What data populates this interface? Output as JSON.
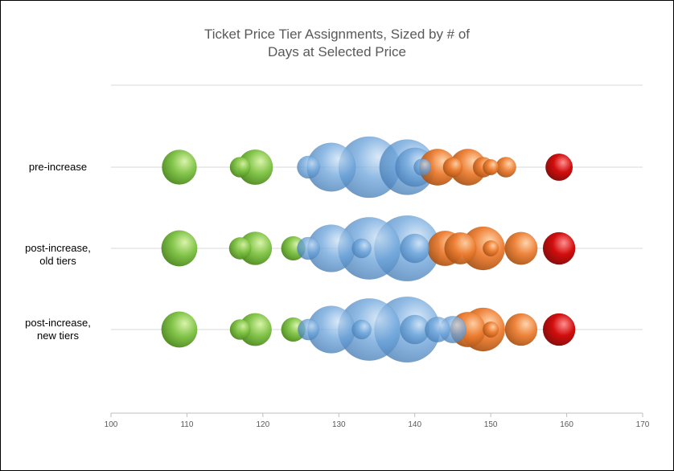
{
  "chart_data": {
    "type": "bubble",
    "title_lines": [
      "Ticket Price Tier Assignments, Sized by # of",
      "Days at Selected Price"
    ],
    "xlim": [
      100,
      170
    ],
    "xticks": [
      100,
      110,
      120,
      130,
      140,
      150,
      160,
      170
    ],
    "categories": [
      "pre-increase",
      "post-increase, old tiers",
      "post-increase, new tiers"
    ],
    "category_label_lines": [
      [
        "pre-increase"
      ],
      [
        "post-increase,",
        "old tiers"
      ],
      [
        "post-increase,",
        "new tiers"
      ]
    ],
    "tier_colors": {
      "green": "#7dc242",
      "blue": "#5b9bd5",
      "orange": "#ed7d31",
      "red": "#c00000"
    },
    "rows": [
      {
        "name": "pre-increase",
        "points": [
          {
            "x": 109,
            "size": 3.3,
            "tier": "green"
          },
          {
            "x": 117,
            "size": 0.6,
            "tier": "green"
          },
          {
            "x": 119,
            "size": 3.4,
            "tier": "green"
          },
          {
            "x": 126,
            "size": 0.9,
            "tier": "blue"
          },
          {
            "x": 129,
            "size": 8.0,
            "tier": "blue"
          },
          {
            "x": 134,
            "size": 14.0,
            "tier": "blue"
          },
          {
            "x": 139,
            "size": 11.0,
            "tier": "blue"
          },
          {
            "x": 140,
            "size": 4.5,
            "tier": "blue"
          },
          {
            "x": 141,
            "size": 0.3,
            "tier": "blue"
          },
          {
            "x": 143,
            "size": 3.8,
            "tier": "orange"
          },
          {
            "x": 145,
            "size": 0.5,
            "tier": "orange"
          },
          {
            "x": 147,
            "size": 3.8,
            "tier": "orange"
          },
          {
            "x": 149,
            "size": 0.6,
            "tier": "orange"
          },
          {
            "x": 150,
            "size": 0.2,
            "tier": "orange"
          },
          {
            "x": 152,
            "size": 0.6,
            "tier": "orange"
          },
          {
            "x": 159,
            "size": 1.6,
            "tier": "red"
          }
        ]
      },
      {
        "name": "post-increase, old tiers",
        "points": [
          {
            "x": 109,
            "size": 3.6,
            "tier": "green"
          },
          {
            "x": 117,
            "size": 0.8,
            "tier": "green"
          },
          {
            "x": 119,
            "size": 2.9,
            "tier": "green"
          },
          {
            "x": 124,
            "size": 1.1,
            "tier": "green"
          },
          {
            "x": 126,
            "size": 0.9,
            "tier": "blue"
          },
          {
            "x": 129,
            "size": 7.5,
            "tier": "blue"
          },
          {
            "x": 133,
            "size": 0.5,
            "tier": "blue"
          },
          {
            "x": 134,
            "size": 14.5,
            "tier": "blue"
          },
          {
            "x": 139,
            "size": 16.5,
            "tier": "blue"
          },
          {
            "x": 140,
            "size": 2.0,
            "tier": "blue"
          },
          {
            "x": 144,
            "size": 3.4,
            "tier": "orange"
          },
          {
            "x": 146,
            "size": 2.6,
            "tier": "orange"
          },
          {
            "x": 149,
            "size": 6.0,
            "tier": "orange"
          },
          {
            "x": 150,
            "size": 0.2,
            "tier": "orange"
          },
          {
            "x": 154,
            "size": 2.8,
            "tier": "orange"
          },
          {
            "x": 159,
            "size": 2.7,
            "tier": "red"
          }
        ]
      },
      {
        "name": "post-increase, new tiers",
        "points": [
          {
            "x": 109,
            "size": 3.6,
            "tier": "green"
          },
          {
            "x": 117,
            "size": 0.6,
            "tier": "green"
          },
          {
            "x": 119,
            "size": 2.8,
            "tier": "green"
          },
          {
            "x": 124,
            "size": 1.1,
            "tier": "green"
          },
          {
            "x": 126,
            "size": 0.7,
            "tier": "blue"
          },
          {
            "x": 129,
            "size": 7.5,
            "tier": "blue"
          },
          {
            "x": 133,
            "size": 0.5,
            "tier": "blue"
          },
          {
            "x": 134,
            "size": 14.5,
            "tier": "blue"
          },
          {
            "x": 139,
            "size": 16.5,
            "tier": "blue"
          },
          {
            "x": 140,
            "size": 2.0,
            "tier": "blue"
          },
          {
            "x": 143,
            "size": 1.3,
            "tier": "blue"
          },
          {
            "x": 145,
            "size": 1.6,
            "tier": "blue"
          },
          {
            "x": 147,
            "size": 3.4,
            "tier": "orange"
          },
          {
            "x": 149,
            "size": 6.0,
            "tier": "orange"
          },
          {
            "x": 150,
            "size": 0.2,
            "tier": "orange"
          },
          {
            "x": 154,
            "size": 2.7,
            "tier": "orange"
          },
          {
            "x": 159,
            "size": 2.7,
            "tier": "red"
          }
        ]
      }
    ],
    "grid": true
  }
}
